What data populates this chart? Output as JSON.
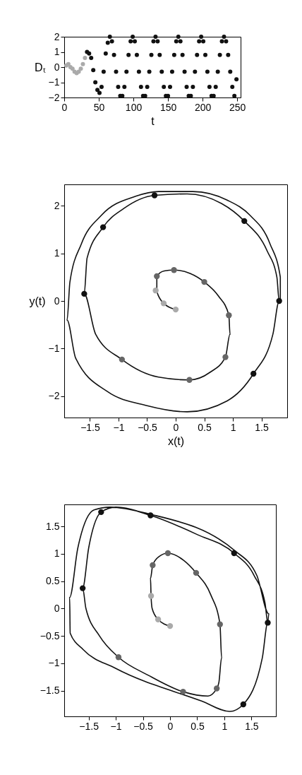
{
  "chart_data": [
    {
      "type": "scatter",
      "xlabel": "t",
      "ylabel": "Dₜ",
      "xlim": [
        0,
        255
      ],
      "ylim": [
        -2,
        2
      ],
      "xticks": [
        0,
        50,
        100,
        150,
        200,
        250
      ],
      "yticks": [
        -2,
        -1,
        0,
        1,
        2
      ],
      "marker": "circle",
      "series": [
        {
          "color": "#aaaaaa",
          "x": [
            3,
            6,
            9,
            12,
            15,
            18,
            21,
            24,
            27,
            30
          ],
          "values": [
            0.1,
            0.2,
            0,
            -0.1,
            -0.3,
            -0.4,
            -0.3,
            -0.1,
            0.2,
            0.6
          ]
        },
        {
          "color": "#111111",
          "x": [
            33,
            36,
            39,
            42,
            45,
            48,
            51,
            54,
            57,
            60,
            63,
            66,
            69,
            72,
            75,
            78,
            81,
            84,
            87,
            90,
            93,
            96,
            99,
            102,
            105,
            108,
            111,
            114,
            117,
            120,
            123,
            126,
            129,
            132,
            135,
            138,
            141,
            144,
            147,
            150,
            153,
            156,
            159,
            162,
            165,
            168,
            171,
            174,
            177,
            180,
            183,
            186,
            189,
            192,
            195,
            198,
            201,
            204,
            207,
            210,
            213,
            216,
            219,
            222,
            225,
            228,
            231,
            234,
            237,
            240,
            243,
            246,
            249
          ],
          "values": [
            1.0,
            0.9,
            0.6,
            -0.2,
            -1.0,
            -1.5,
            -1.7,
            -1.3,
            -0.3,
            0.9,
            1.6,
            2,
            1.7,
            0.8,
            -0.3,
            -1.3,
            -1.9,
            -1.9,
            -1.3,
            -0.3,
            0.8,
            1.7,
            2,
            1.7,
            0.8,
            -0.3,
            -1.3,
            -1.9,
            -1.9,
            -1.3,
            -0.3,
            0.8,
            1.7,
            2,
            1.7,
            0.8,
            -0.3,
            -1.3,
            -1.9,
            -1.9,
            -1.3,
            -0.3,
            0.8,
            1.7,
            2,
            1.7,
            0.8,
            -0.3,
            -1.3,
            -1.9,
            -1.9,
            -1.3,
            -0.3,
            0.8,
            1.7,
            2,
            1.7,
            0.8,
            -0.3,
            -1.3,
            -1.9,
            -1.9,
            -1.3,
            -0.3,
            0.8,
            1.7,
            2,
            1.7,
            0.8,
            -0.3,
            -1.3,
            -1.9,
            -0.8
          ]
        }
      ]
    },
    {
      "type": "scatter",
      "xlabel": "x(t)",
      "ylabel": "y(t)",
      "xlim": [
        -1.95,
        1.95
      ],
      "ylim": [
        -2.45,
        2.45
      ],
      "xticks": [
        -1.5,
        -1,
        -0.5,
        0,
        0.5,
        1,
        1.5
      ],
      "yticks": [
        -2,
        -1,
        0,
        1,
        2
      ],
      "marker": "circle",
      "series": [
        {
          "type": "line",
          "marker": "none",
          "color": "#111111",
          "x": [
            0,
            -0.21,
            -0.33,
            -0.33,
            -0.2,
            -0.03,
            0.25,
            0.5,
            0.75,
            0.93,
            0.95,
            0.87,
            0.6,
            0.24,
            -0.3,
            -0.94,
            -1.4,
            -1.6,
            -1.55,
            -1.27,
            -0.9,
            -0.37,
            0.2,
            0.8,
            1.2,
            1.6,
            1.77,
            1.81,
            1.7,
            1.36,
            0.9,
            0.2,
            -0.5,
            -1.2,
            -1.75,
            -1.9,
            -1.85,
            -1.65,
            -1.3,
            -0.7,
            -0.3,
            0.3,
            0.9,
            1.3,
            1.65,
            1.83,
            1.83
          ],
          "values": [
            -0.18,
            -0.05,
            0.2,
            0.52,
            0.63,
            0.65,
            0.58,
            0.4,
            0.1,
            -0.3,
            -0.7,
            -1.18,
            -1.5,
            -1.66,
            -1.6,
            -1.23,
            -0.7,
            0.15,
            0.9,
            1.55,
            1.95,
            2.22,
            2.25,
            2.05,
            1.68,
            1.05,
            0.5,
            0,
            -0.7,
            -1.53,
            -2.1,
            -2.33,
            -2.2,
            -1.9,
            -1.2,
            -0.4,
            0.4,
            1.2,
            1.8,
            2.2,
            2.3,
            2.3,
            2.12,
            1.8,
            1.2,
            0.5,
            0
          ]
        },
        {
          "color": "#aaaaaa",
          "x": [
            0,
            -0.21,
            -0.35
          ],
          "values": [
            -0.18,
            -0.05,
            0.22
          ]
        },
        {
          "color": "#666666",
          "x": [
            -0.33,
            -0.03,
            0.5,
            0.93,
            0.87,
            0.24,
            -0.94
          ],
          "values": [
            0.52,
            0.65,
            0.4,
            -0.3,
            -1.18,
            -1.66,
            -1.23
          ]
        },
        {
          "color": "#111111",
          "x": [
            -1.6,
            -1.27,
            -0.37,
            1.2,
            1.81,
            1.36
          ],
          "values": [
            0.15,
            1.55,
            2.22,
            1.68,
            0,
            -1.53
          ]
        }
      ]
    },
    {
      "type": "scatter",
      "xlim": [
        -1.95,
        1.95
      ],
      "ylim": [
        -1.97,
        1.9
      ],
      "xticks": [
        -1.5,
        -1,
        -0.5,
        0,
        0.5,
        1,
        1.5
      ],
      "yticks": [
        -1.5,
        -1,
        -0.5,
        0,
        0.5,
        1,
        1.5
      ],
      "marker": "circle",
      "series": [
        {
          "type": "line",
          "marker": "none",
          "color": "#111111",
          "x": [
            0,
            -0.22,
            -0.33,
            -0.35,
            -0.36,
            -0.32,
            -0.2,
            -0.04,
            0.25,
            0.48,
            0.75,
            0.92,
            0.95,
            0.9,
            0.86,
            0.7,
            0.24,
            -0.4,
            -0.95,
            -1.3,
            -1.55,
            -1.61,
            -1.5,
            -1.27,
            -1.0,
            -0.36,
            0.5,
            1.18,
            1.55,
            1.75,
            1.8,
            1.7,
            1.35,
            1.1,
            0.58,
            -1.01,
            -1.6,
            -1.84,
            -1.85,
            -1.7,
            -1.4,
            -1.1,
            -0.4,
            1.2,
            1.6,
            1.82,
            1.8
          ],
          "values": [
            -0.32,
            -0.2,
            0,
            0.23,
            0.55,
            0.79,
            0.95,
            1.01,
            0.88,
            0.65,
            0.25,
            -0.29,
            -0.9,
            -1.35,
            -1.46,
            -1.6,
            -1.52,
            -1.22,
            -0.89,
            -0.5,
            0,
            0.37,
            1.1,
            1.76,
            1.85,
            1.7,
            1.35,
            1.01,
            0.6,
            0.1,
            -0.26,
            -0.9,
            -1.75,
            -1.88,
            -1.69,
            -1.09,
            -0.75,
            -0.45,
            0.2,
            1.1,
            1.8,
            1.85,
            1.73,
            1.05,
            0.6,
            -0.1,
            -0.3
          ]
        },
        {
          "color": "#aaaaaa",
          "x": [
            0,
            -0.22,
            -0.35
          ],
          "values": [
            -0.32,
            -0.2,
            0.23
          ]
        },
        {
          "color": "#666666",
          "x": [
            -0.32,
            -0.04,
            0.48,
            0.92,
            0.86,
            0.24,
            -0.95
          ],
          "values": [
            0.79,
            1.01,
            0.65,
            -0.29,
            -1.46,
            -1.52,
            -0.89
          ]
        },
        {
          "color": "#111111",
          "x": [
            -1.61,
            -1.27,
            -0.36,
            1.18,
            1.8,
            1.35
          ],
          "values": [
            0.37,
            1.76,
            1.7,
            1.01,
            -0.26,
            -1.75
          ]
        }
      ]
    }
  ]
}
